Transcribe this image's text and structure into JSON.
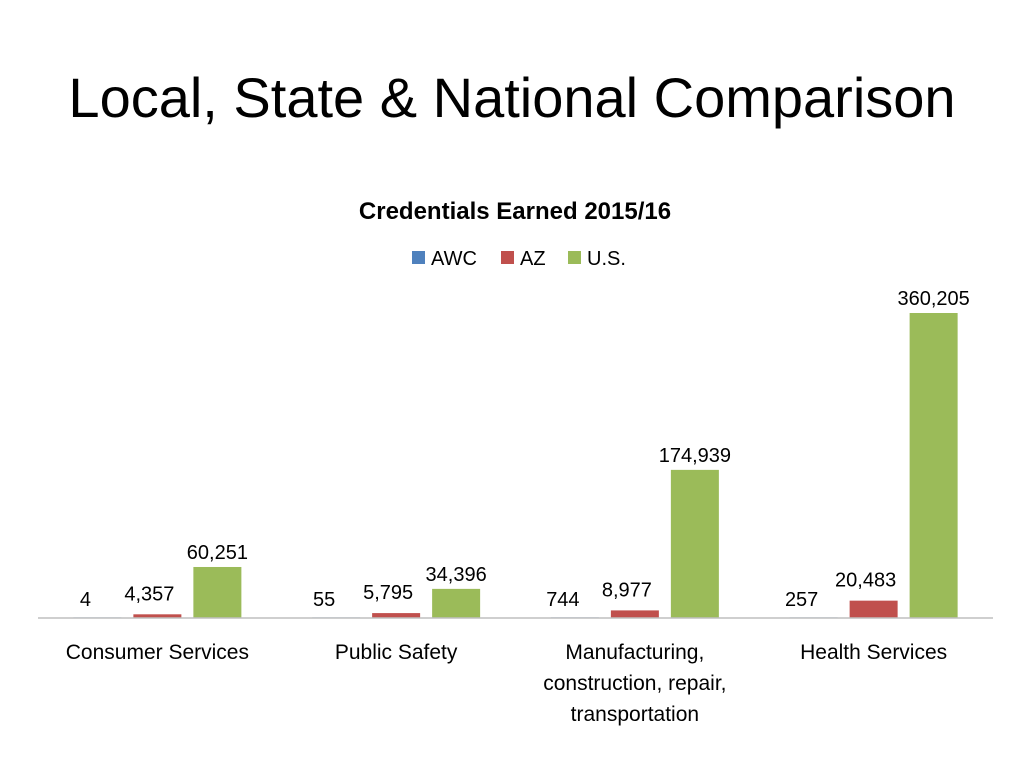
{
  "slide": {
    "title": "Local, State & National Comparison"
  },
  "chart_data": {
    "type": "bar",
    "title": "Credentials Earned 2015/16",
    "categories": [
      [
        "Consumer Services"
      ],
      [
        "Public Safety"
      ],
      [
        "Manufacturing,",
        "construction, repair,",
        "transportation"
      ],
      [
        "Health Services"
      ]
    ],
    "series": [
      {
        "name": "AWC",
        "color": "#4F81BD",
        "values": [
          4,
          55,
          744,
          257
        ],
        "labels": [
          "4",
          "55",
          "744",
          "257"
        ]
      },
      {
        "name": "AZ",
        "color": "#C0504D",
        "values": [
          4357,
          5795,
          8977,
          20483
        ],
        "labels": [
          "4,357",
          "5,795",
          "8,977",
          "20,483"
        ]
      },
      {
        "name": "U.S.",
        "color": "#9BBB59",
        "values": [
          60251,
          34396,
          174939,
          360205
        ],
        "labels": [
          "60,251",
          "34,396",
          "174,939",
          "360,205"
        ]
      }
    ],
    "ylim": [
      0,
      360205
    ],
    "legend": "top-center",
    "grid": false,
    "xlabel": "",
    "ylabel": ""
  }
}
